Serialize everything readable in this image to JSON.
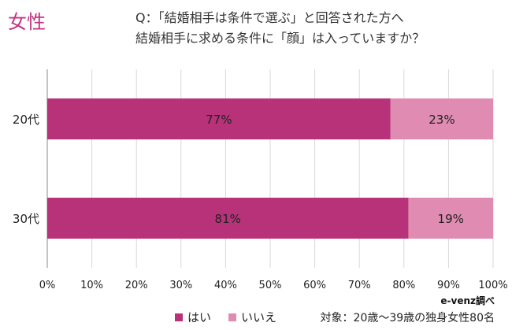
{
  "badge": "女性",
  "question": {
    "line1": "Q：「結婚相手は条件で選ぶ」と回答された方へ",
    "line2": "結婚相手に求める条件に「顔」は入っていますか？"
  },
  "chart_data": {
    "type": "bar",
    "orientation": "horizontal",
    "stacked": true,
    "categories": [
      "20代",
      "30代"
    ],
    "series": [
      {
        "name": "はい",
        "values": [
          77,
          81
        ],
        "color": "#b8327a"
      },
      {
        "name": "いいえ",
        "values": [
          23,
          19
        ],
        "color": "#e08cb2"
      }
    ],
    "xlim": [
      0,
      100
    ],
    "xticks": [
      "0%",
      "10%",
      "20%",
      "30%",
      "40%",
      "50%",
      "60%",
      "70%",
      "80%",
      "90%",
      "100%"
    ],
    "data_labels": [
      [
        "77%",
        "81%"
      ],
      [
        "23%",
        "19%"
      ]
    ],
    "grid": true,
    "legend_position": "bottom"
  },
  "source": "e-venz調べ",
  "note": "対象：20歳〜39歳の独身女性80名"
}
